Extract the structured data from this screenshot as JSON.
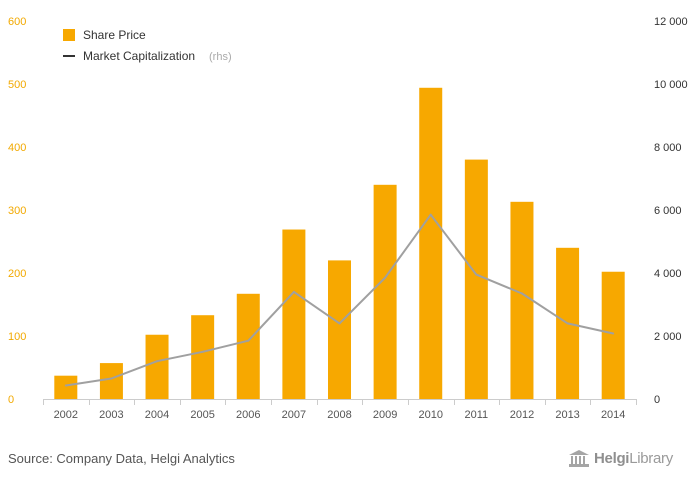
{
  "chart_data": {
    "type": "bar",
    "title": "",
    "categories": [
      "2002",
      "2003",
      "2004",
      "2005",
      "2006",
      "2007",
      "2008",
      "2009",
      "2010",
      "2011",
      "2012",
      "2013",
      "2014"
    ],
    "series": [
      {
        "name": "Share Price",
        "type": "bar",
        "axis": "left",
        "color": "#f7a800",
        "values": [
          37,
          57,
          102,
          133,
          167,
          269,
          220,
          340,
          494,
          380,
          313,
          240,
          202
        ]
      },
      {
        "name": "Market Capitalization",
        "legend_note": "(rhs)",
        "type": "line",
        "axis": "right",
        "color": "#a0a0a0",
        "values": [
          430,
          650,
          1200,
          1500,
          1850,
          3400,
          2400,
          3850,
          5850,
          3950,
          3350,
          2400,
          2080
        ]
      }
    ],
    "y_left": {
      "ticks": [
        "0",
        "100",
        "200",
        "300",
        "400",
        "500",
        "600"
      ],
      "ylim": [
        0,
        600
      ],
      "color": "#f2a900"
    },
    "y_right": {
      "ticks": [
        "0",
        "2 000",
        "4 000",
        "6 000",
        "8 000",
        "10 000",
        "12 000"
      ],
      "ylim": [
        0,
        12000
      ]
    },
    "legend": {
      "position": "top-left"
    },
    "grid": false
  },
  "footer": {
    "source": "Source: Company Data, Helgi Analytics",
    "logo_bold": "Helgi",
    "logo_normal": "Library"
  }
}
